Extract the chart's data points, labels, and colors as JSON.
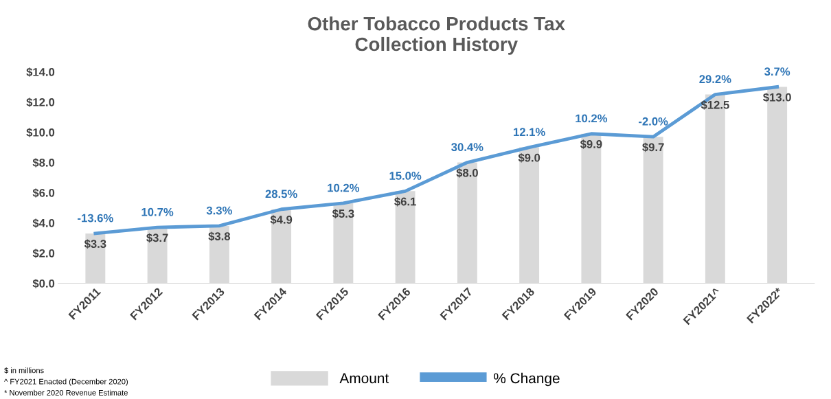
{
  "chart_data": {
    "type": "bar",
    "title": "Other Tobacco Products Tax\nCollection History",
    "categories": [
      "FY2011",
      "FY2012",
      "FY2013",
      "FY2014",
      "FY2015",
      "FY2016",
      "FY2017",
      "FY2018",
      "FY2019",
      "FY2020",
      "FY2021^",
      "FY2022*"
    ],
    "series": [
      {
        "name": "Amount",
        "color": "#d9d9d9",
        "values": [
          3.3,
          3.7,
          3.8,
          4.9,
          5.3,
          6.1,
          8.0,
          9.0,
          9.9,
          9.7,
          12.5,
          13.0
        ],
        "value_labels": [
          "$3.3",
          "$3.7",
          "$3.8",
          "$4.9",
          "$5.3",
          "$6.1",
          "$8.0",
          "$9.0",
          "$9.9",
          "$9.7",
          "$12.5",
          "$13.0"
        ]
      },
      {
        "name": "% Change",
        "type": "line",
        "color": "#5b9bd5",
        "values": [
          3.3,
          3.7,
          3.8,
          4.9,
          5.3,
          6.1,
          8.0,
          9.0,
          9.9,
          9.7,
          12.5,
          13.0
        ]
      }
    ],
    "ylim": [
      0,
      14
    ],
    "yticks": [
      {
        "value": 0,
        "label": "$0.0"
      },
      {
        "value": 2,
        "label": "$2.0"
      },
      {
        "value": 4,
        "label": "$4.0"
      },
      {
        "value": 6,
        "label": "$6.0"
      },
      {
        "value": 8,
        "label": "$8.0"
      },
      {
        "value": 10,
        "label": "$10.0"
      },
      {
        "value": 12,
        "label": "$12.0"
      },
      {
        "value": 14,
        "label": "$14.0"
      }
    ],
    "grid": false,
    "legend": "bottom",
    "marker": "none",
    "line_style": "solid",
    "annotations": [
      {
        "text": "-13.6%",
        "x": "FY2011",
        "y": 3.3
      },
      {
        "text": "10.7%",
        "x": "FY2012",
        "y": 3.7
      },
      {
        "text": "3.3%",
        "x": "FY2013",
        "y": 3.8
      },
      {
        "text": "28.5%",
        "x": "FY2014",
        "y": 4.9
      },
      {
        "text": "10.2%",
        "x": "FY2015",
        "y": 5.3
      },
      {
        "text": "15.0%",
        "x": "FY2016",
        "y": 6.1
      },
      {
        "text": "30.4%",
        "x": "FY2017",
        "y": 8.0
      },
      {
        "text": "12.1%",
        "x": "FY2018",
        "y": 9.0
      },
      {
        "text": "10.2%",
        "x": "FY2019",
        "y": 9.9
      },
      {
        "text": "-2.0%",
        "x": "FY2020",
        "y": 9.7
      },
      {
        "text": "29.2%",
        "x": "FY2021^",
        "y": 12.5
      },
      {
        "text": "3.7%",
        "x": "FY2022*",
        "y": 13.0
      },
      "$ in millions",
      "^ FY2021 Enacted (December 2020)",
      "* November 2020 Revenue Estimate"
    ]
  }
}
